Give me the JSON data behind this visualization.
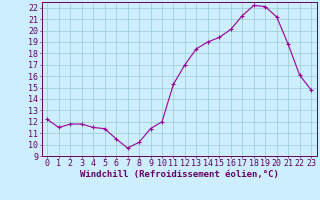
{
  "x": [
    0,
    1,
    2,
    3,
    4,
    5,
    6,
    7,
    8,
    9,
    10,
    11,
    12,
    13,
    14,
    15,
    16,
    17,
    18,
    19,
    20,
    21,
    22,
    23
  ],
  "y": [
    12.2,
    11.5,
    11.8,
    11.8,
    11.5,
    11.4,
    10.5,
    9.7,
    10.2,
    11.4,
    12.0,
    15.3,
    17.0,
    18.4,
    19.0,
    19.4,
    20.1,
    21.3,
    22.2,
    22.1,
    21.2,
    18.8,
    16.1,
    14.8
  ],
  "line_color": "#990099",
  "marker": "+",
  "marker_size": 3,
  "bg_color": "#cceeff",
  "grid_color": "#99cccc",
  "xlabel": "Windchill (Refroidissement éolien,°C)",
  "xlabel_fontsize": 6.5,
  "tick_fontsize": 6,
  "ylim": [
    9,
    22.5
  ],
  "xlim": [
    -0.5,
    23.5
  ],
  "yticks": [
    9,
    10,
    11,
    12,
    13,
    14,
    15,
    16,
    17,
    18,
    19,
    20,
    21,
    22
  ],
  "xticks": [
    0,
    1,
    2,
    3,
    4,
    5,
    6,
    7,
    8,
    9,
    10,
    11,
    12,
    13,
    14,
    15,
    16,
    17,
    18,
    19,
    20,
    21,
    22,
    23
  ],
  "axis_color": "#660066"
}
